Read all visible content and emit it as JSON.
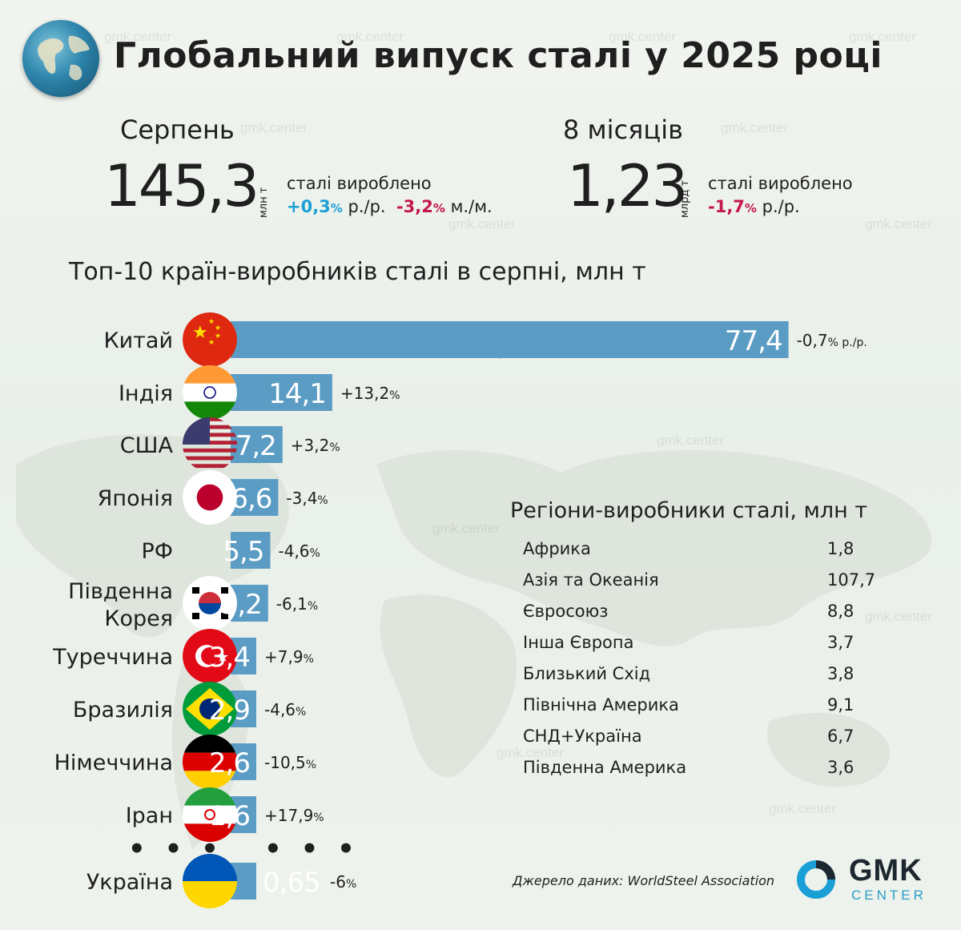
{
  "header": {
    "title": "Глобальний випуск сталі у 2025 році"
  },
  "watermark": "gmk.center",
  "stats": {
    "month": {
      "label": "Серпень",
      "value": "145,3",
      "unit": "млн т",
      "text": "сталі вироблено",
      "yoy_value": "+0,3",
      "yoy_suffix": "р./р.",
      "mom_value": "-3,2",
      "mom_suffix": "м./м.",
      "pct_sign": "%"
    },
    "period": {
      "label": "8 місяців",
      "value": "1,23",
      "unit": "млрд т",
      "text": "сталі вироблено",
      "yoy_value": "-1,7",
      "yoy_suffix": "р./р.",
      "pct_sign": "%"
    }
  },
  "chart_data": {
    "type": "bar",
    "orientation": "horizontal",
    "title": "Топ-10 країн-виробників сталі в серпні, млн т",
    "categories": [
      "Китай",
      "Індія",
      "США",
      "Японія",
      "РФ",
      "Південна Корея",
      "Туреччина",
      "Бразилія",
      "Німеччина",
      "Іран",
      "Україна"
    ],
    "category_lines": [
      [
        "Китай"
      ],
      [
        "Індія"
      ],
      [
        "США"
      ],
      [
        "Японія"
      ],
      [
        "РФ"
      ],
      [
        "Південна",
        "Корея"
      ],
      [
        "Туреччина"
      ],
      [
        "Бразилія"
      ],
      [
        "Німеччина"
      ],
      [
        "Іран"
      ],
      [
        "Україна"
      ]
    ],
    "values": [
      77.4,
      14.1,
      7.2,
      6.6,
      5.5,
      5.2,
      3.4,
      2.9,
      2.6,
      1.6,
      0.65
    ],
    "value_labels": [
      "77,4",
      "14,1",
      "7,2",
      "6,6",
      "5,5",
      "5,2",
      "3,4",
      "2,9",
      "2,6",
      "1,6",
      "0,65"
    ],
    "changes": [
      "-0,7",
      "+13,2",
      "+3,2",
      "-3,4",
      "-4,6",
      "-6,1",
      "+7,9",
      "-4,6",
      "-10,5",
      "+17,9",
      "-6"
    ],
    "change_suffix_first": "р./р.",
    "pct_sign": "%",
    "bar_color": "#5b9cc4",
    "separator": "• • •"
  },
  "regions": {
    "title": "Регіони-виробники сталі, млн т",
    "rows": [
      {
        "name": "Африка",
        "value": "1,8"
      },
      {
        "name": "Азія та Океанія",
        "value": "107,7"
      },
      {
        "name": "Євросоюз",
        "value": "8,8"
      },
      {
        "name": "Інша Європа",
        "value": "3,7"
      },
      {
        "name": "Близький Схід",
        "value": "3,8"
      },
      {
        "name": "Північна Америка",
        "value": "9,1"
      },
      {
        "name": "СНД+Україна",
        "value": "6,7"
      },
      {
        "name": "Південна Америка",
        "value": "3,6"
      }
    ]
  },
  "footer": {
    "source": "Джерело даних: WorldSteel Association",
    "logo_main": "GMK",
    "logo_sub": "CENTER"
  },
  "colors": {
    "accent_blue": "#1a9fd6",
    "negative": "#c4174a",
    "bar": "#5b9cc4"
  }
}
